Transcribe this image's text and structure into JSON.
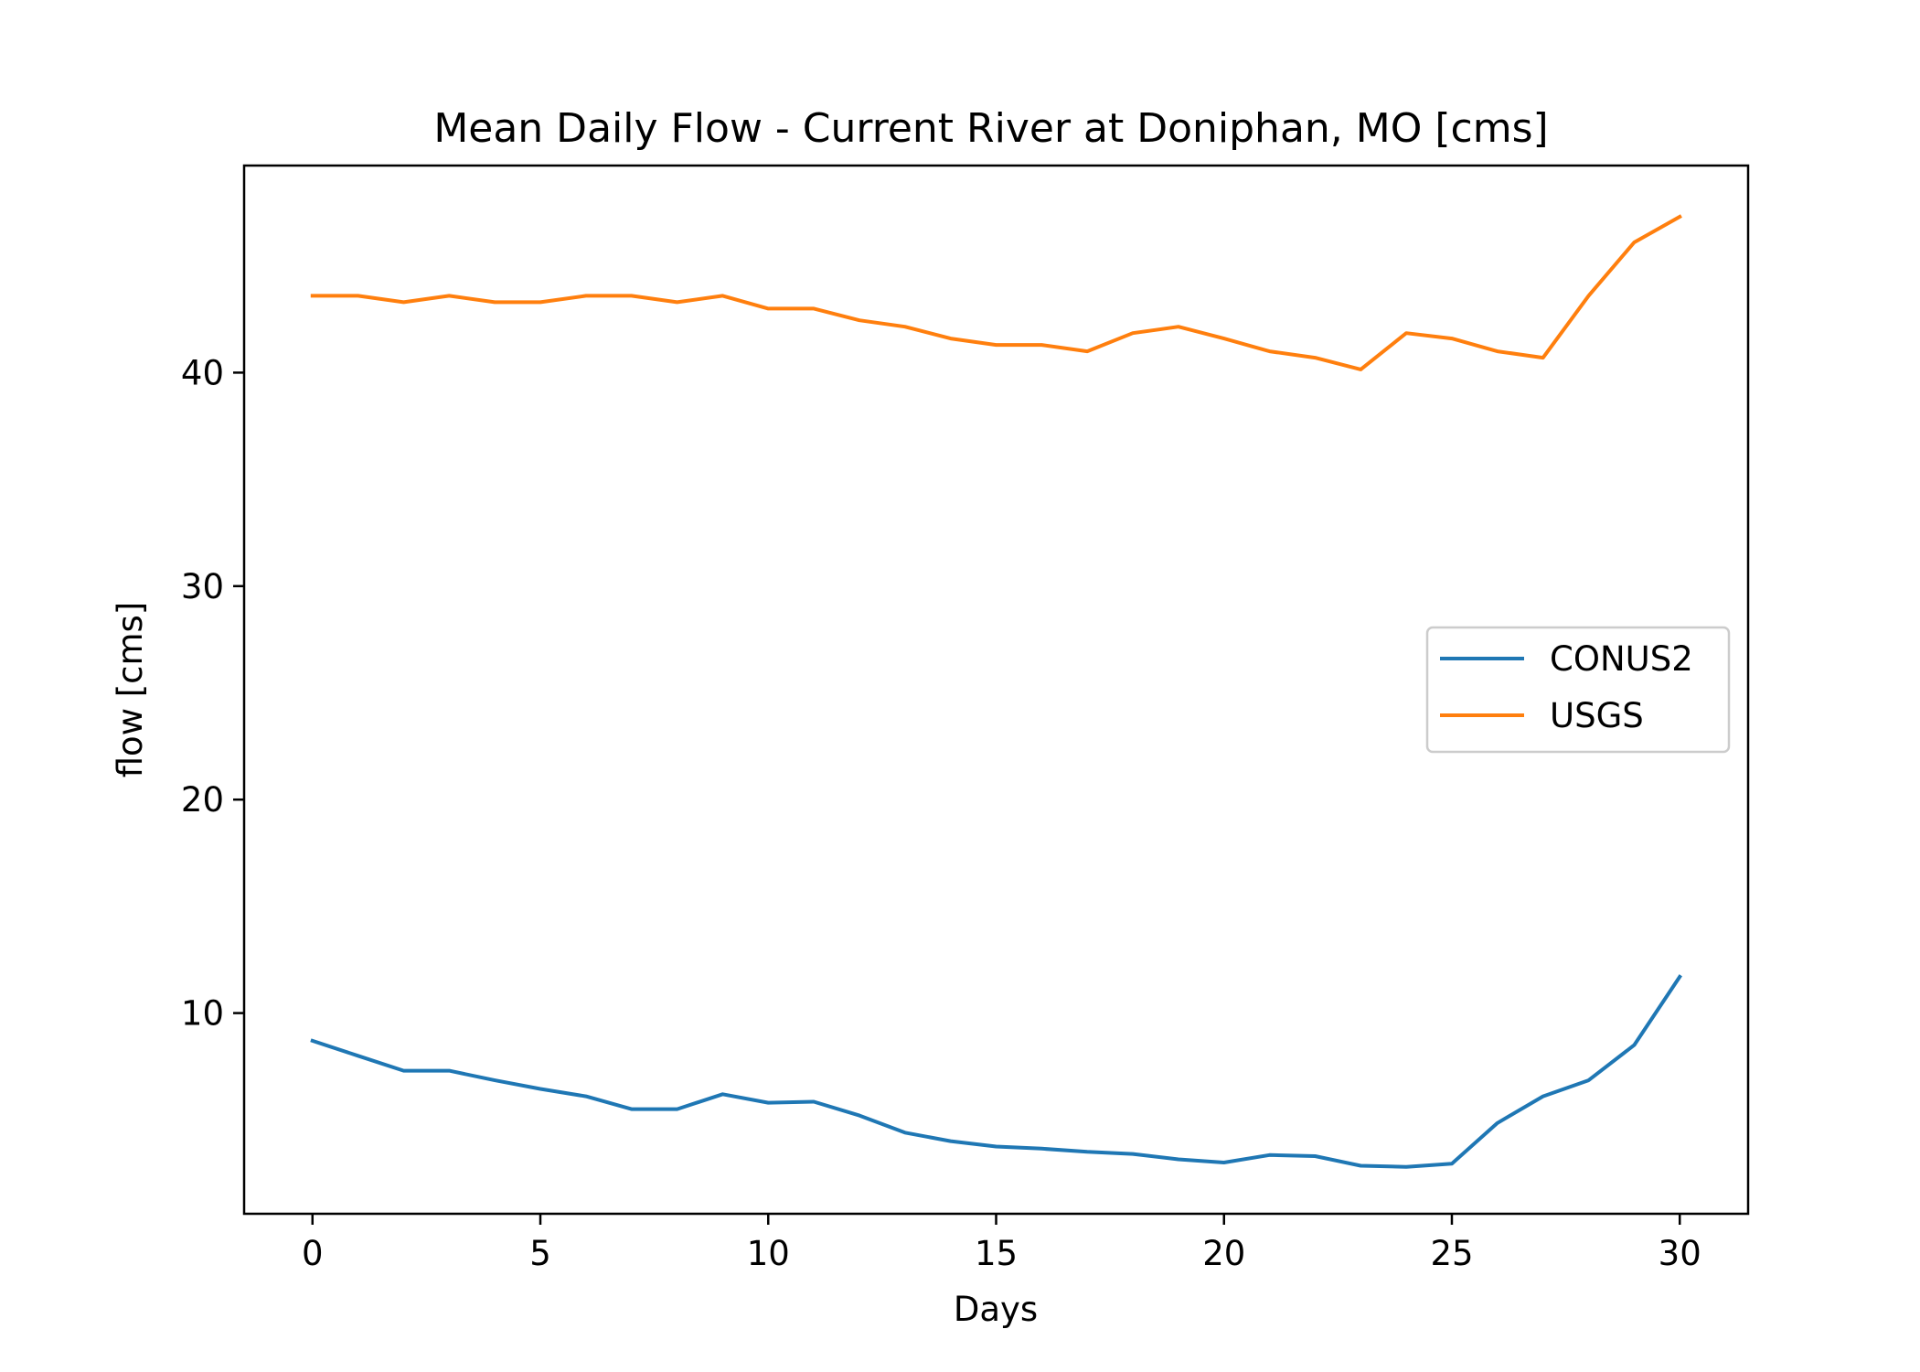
{
  "chart_data": {
    "type": "line",
    "title": "Mean Daily Flow - Current River at Doniphan, MO [cms]",
    "xlabel": "Days",
    "ylabel": "flow [cms]",
    "xlim": [
      -1.5,
      31.5
    ],
    "ylim": [
      0.6,
      49.7
    ],
    "xticks": [
      0,
      5,
      10,
      15,
      20,
      25,
      30
    ],
    "yticks": [
      10,
      20,
      30,
      40
    ],
    "grid": false,
    "legend_position": "center-right",
    "x": [
      0,
      1,
      2,
      3,
      4,
      5,
      6,
      7,
      8,
      9,
      10,
      11,
      12,
      13,
      14,
      15,
      16,
      17,
      18,
      19,
      20,
      21,
      22,
      23,
      24,
      25,
      26,
      27,
      28,
      29,
      30
    ],
    "series": [
      {
        "name": "CONUS2",
        "color": "#1f77b4",
        "values": [
          8.7,
          8.0,
          7.3,
          7.3,
          6.85,
          6.45,
          6.1,
          5.5,
          5.5,
          6.2,
          5.8,
          5.85,
          5.2,
          4.4,
          4.0,
          3.75,
          3.65,
          3.5,
          3.4,
          3.15,
          3.0,
          3.35,
          3.3,
          2.85,
          2.8,
          2.95,
          4.85,
          6.1,
          6.85,
          8.5,
          11.7
        ]
      },
      {
        "name": "USGS",
        "color": "#ff7f0e",
        "values": [
          43.6,
          43.6,
          43.3,
          43.6,
          43.3,
          43.3,
          43.6,
          43.6,
          43.3,
          43.6,
          43.0,
          43.0,
          42.45,
          42.15,
          41.6,
          41.3,
          41.3,
          41.0,
          41.85,
          42.15,
          41.6,
          41.0,
          40.7,
          40.15,
          41.85,
          41.6,
          41.0,
          40.7,
          43.6,
          46.1,
          47.3
        ]
      }
    ]
  }
}
